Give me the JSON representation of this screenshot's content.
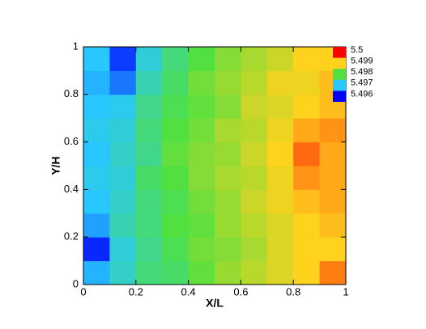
{
  "chart_data": {
    "type": "contour",
    "xlabel": "X/L",
    "ylabel": "Y/H",
    "xlim": [
      0,
      1
    ],
    "ylim": [
      0,
      1
    ],
    "xticks": [
      0,
      0.2,
      0.4,
      0.6,
      0.8,
      1
    ],
    "yticks": [
      0,
      0.2,
      0.4,
      0.6,
      0.8,
      1
    ],
    "x": [
      0.05,
      0.15,
      0.25,
      0.35,
      0.45,
      0.55,
      0.65,
      0.75,
      0.85,
      0.95
    ],
    "y": [
      0.05,
      0.15,
      0.25,
      0.35,
      0.45,
      0.55,
      0.65,
      0.75,
      0.85,
      0.95
    ],
    "z": [
      [
        5.4969,
        5.4973,
        5.4977,
        5.4978,
        5.4981,
        5.4984,
        5.4986,
        5.4988,
        5.499,
        5.4994
      ],
      [
        5.4962,
        5.4972,
        5.4976,
        5.4979,
        5.4982,
        5.4983,
        5.4985,
        5.4988,
        5.499,
        5.499
      ],
      [
        5.4968,
        5.4974,
        5.4977,
        5.498,
        5.4981,
        5.4984,
        5.4986,
        5.4988,
        5.499,
        5.4991
      ],
      [
        5.497,
        5.4973,
        5.4977,
        5.4979,
        5.4982,
        5.4984,
        5.4987,
        5.4989,
        5.4991,
        5.4992
      ],
      [
        5.4971,
        5.4972,
        5.4978,
        5.498,
        5.4983,
        5.4985,
        5.4986,
        5.4989,
        5.4993,
        5.4992
      ],
      [
        5.497,
        5.4973,
        5.4976,
        5.4981,
        5.4983,
        5.4984,
        5.4987,
        5.499,
        5.4995,
        5.4992
      ],
      [
        5.4971,
        5.4972,
        5.4977,
        5.498,
        5.4982,
        5.4985,
        5.4986,
        5.4989,
        5.4992,
        5.4993
      ],
      [
        5.497,
        5.4971,
        5.4976,
        5.4979,
        5.4981,
        5.4983,
        5.4987,
        5.4988,
        5.499,
        5.4991
      ],
      [
        5.4969,
        5.4966,
        5.4974,
        5.4978,
        5.4982,
        5.4984,
        5.4986,
        5.4989,
        5.4989,
        5.4991
      ],
      [
        5.497,
        5.4963,
        5.4972,
        5.4977,
        5.498,
        5.4983,
        5.4985,
        5.4987,
        5.499,
        5.499
      ]
    ],
    "legend": {
      "levels": [
        5.5,
        5.499,
        5.498,
        5.497,
        5.496
      ],
      "colors": [
        "#ff0000",
        "#ffd21e",
        "#50e040",
        "#28c8ff",
        "#0000ff"
      ]
    }
  }
}
